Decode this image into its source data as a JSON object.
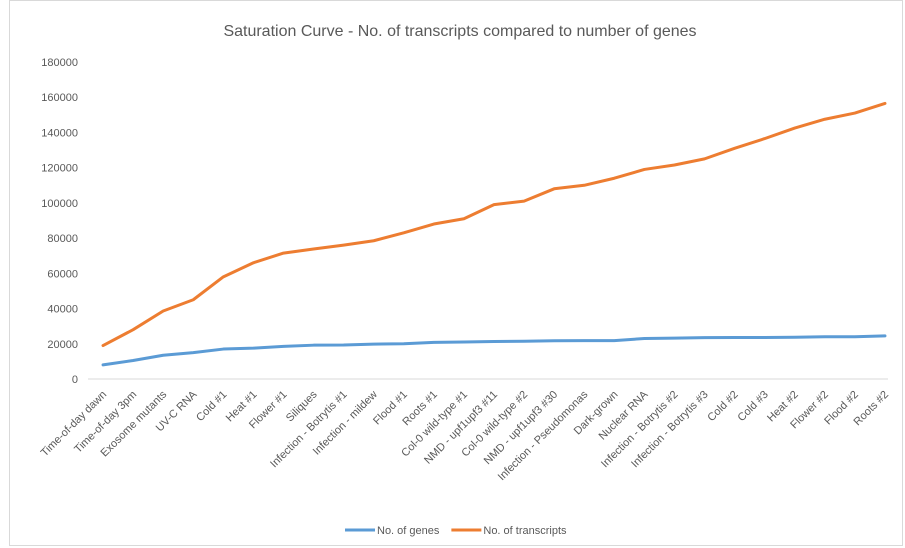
{
  "chart_data": {
    "type": "line",
    "title": "Saturation Curve - No. of transcripts compared to number of genes",
    "categories": [
      "Time-of-day dawn",
      "Time-of-day 3pm",
      "Exosome mutants",
      "UV-C RNA",
      "Cold #1",
      "Heat #1",
      "Flower #1",
      "Siliques",
      "Infection - Botrytis #1",
      "Infection - mildew",
      "Flood #1",
      "Roots #1",
      "Col-0 wild-type #1",
      "NMD - upf1upf3 #11",
      "Col-0 wild-type #2",
      "NMD - upf1upf3 #30",
      "Infection - Pseudomonas",
      "Dark-grown",
      "Nuclear RNA",
      "Infection - Botrytis #2",
      "Infection - Botrytis #3",
      "Cold  #2",
      "Cold #3",
      "Heat #2",
      "Flower #2",
      "Flood #2",
      "Roots #2"
    ],
    "series": [
      {
        "name": "No. of genes",
        "color": "#5b9bd5",
        "values": [
          8000,
          10500,
          13500,
          15000,
          17000,
          17500,
          18500,
          19200,
          19300,
          19800,
          20000,
          20800,
          21000,
          21300,
          21400,
          21700,
          21800,
          21800,
          23000,
          23200,
          23500,
          23600,
          23600,
          23700,
          24000,
          24000,
          24500
        ]
      },
      {
        "name": "No. of transcripts",
        "color": "#ed7d31",
        "values": [
          19000,
          28000,
          38600,
          45000,
          58000,
          66000,
          71500,
          73800,
          76000,
          78500,
          83000,
          88000,
          91000,
          99000,
          101000,
          108000,
          110000,
          114000,
          119000,
          121500,
          125000,
          131000,
          136500,
          142500,
          147500,
          151000,
          156500
        ]
      }
    ],
    "ylim": [
      0,
      180000
    ],
    "yticks": [
      0,
      20000,
      40000,
      60000,
      80000,
      100000,
      120000,
      140000,
      160000,
      180000
    ],
    "grid": false,
    "legend": "bottom"
  }
}
